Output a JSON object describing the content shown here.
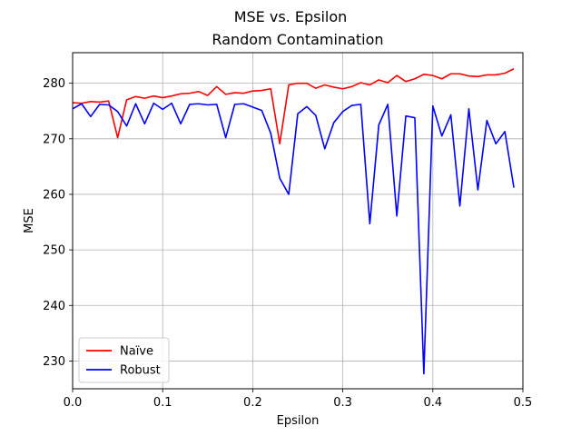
{
  "chart_data": {
    "type": "line",
    "title": "MSE vs. Epsilon",
    "subtitle": "Random Contamination",
    "xlabel": "Epsilon",
    "ylabel": "MSE",
    "xlim": [
      0,
      0.5
    ],
    "ylim": [
      225,
      285.5
    ],
    "xticks": [
      0.0,
      0.1,
      0.2,
      0.3,
      0.4,
      0.5
    ],
    "xtick_labels": [
      "0.0",
      "0.1",
      "0.2",
      "0.3",
      "0.4",
      "0.5"
    ],
    "yticks": [
      230,
      240,
      250,
      260,
      270,
      280
    ],
    "ytick_labels": [
      "230",
      "240",
      "250",
      "260",
      "270",
      "280"
    ],
    "grid": true,
    "legend_position": "bottom-left",
    "x": [
      0.0,
      0.01,
      0.02,
      0.03,
      0.04,
      0.05,
      0.06,
      0.07,
      0.08,
      0.09,
      0.1,
      0.11,
      0.12,
      0.13,
      0.14,
      0.15,
      0.16,
      0.17,
      0.18,
      0.19,
      0.2,
      0.21,
      0.22,
      0.23,
      0.24,
      0.25,
      0.26,
      0.27,
      0.28,
      0.29,
      0.3,
      0.31,
      0.32,
      0.33,
      0.34,
      0.35,
      0.36,
      0.37,
      0.38,
      0.39,
      0.4,
      0.41,
      0.42,
      0.43,
      0.44,
      0.45,
      0.46,
      0.47,
      0.48,
      0.49
    ],
    "series": [
      {
        "name": "Naïve",
        "color": "#ff0000",
        "values": [
          276.5,
          276.4,
          276.7,
          276.6,
          276.8,
          270.2,
          277.0,
          277.6,
          277.3,
          277.7,
          277.4,
          277.7,
          278.1,
          278.2,
          278.5,
          277.8,
          279.4,
          278.0,
          278.3,
          278.2,
          278.6,
          278.7,
          279.0,
          269.1,
          279.7,
          280.0,
          280.0,
          279.1,
          279.7,
          279.3,
          279.0,
          279.4,
          280.1,
          279.7,
          280.6,
          280.1,
          281.4,
          280.3,
          280.8,
          281.6,
          281.4,
          280.8,
          281.7,
          281.7,
          281.3,
          281.2,
          281.5,
          281.5,
          281.8,
          282.6
        ]
      },
      {
        "name": "Robust",
        "color": "#0000ff",
        "values": [
          275.4,
          276.3,
          274.0,
          276.2,
          276.1,
          274.9,
          272.3,
          276.3,
          272.7,
          276.4,
          275.3,
          276.4,
          272.7,
          276.2,
          276.3,
          276.1,
          276.2,
          270.2,
          276.2,
          276.3,
          275.7,
          275.1,
          271.0,
          262.9,
          260.0,
          274.5,
          275.8,
          274.2,
          268.2,
          272.9,
          274.9,
          276.0,
          276.2,
          254.7,
          272.5,
          276.2,
          256.1,
          274.1,
          273.8,
          227.7,
          275.9,
          270.5,
          274.3,
          257.9,
          275.4,
          260.8,
          273.3,
          269.1,
          271.3,
          261.2
        ]
      }
    ]
  }
}
